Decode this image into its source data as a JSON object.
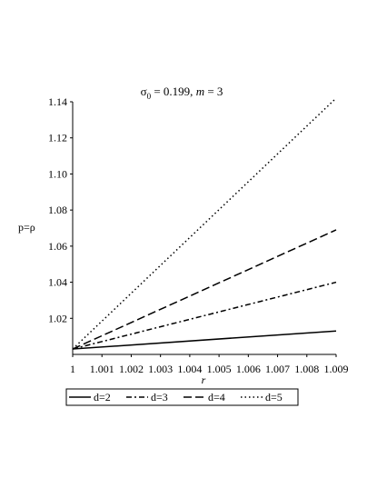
{
  "chart_data": {
    "type": "line",
    "title": {
      "symbol": "σ",
      "subscript": "0",
      "rest": " = 0.199, ",
      "italic": "m",
      "rest2": " = 3"
    },
    "xlabel": "r",
    "ylabel": "p=ρ",
    "xlim": [
      1,
      1.009
    ],
    "ylim": [
      1.0,
      1.14
    ],
    "x_ticks": [
      "1",
      "1.001",
      "1.002",
      "1.003",
      "1.004",
      "1.005",
      "1.006",
      "1.007",
      "1.008",
      "1.009"
    ],
    "y_ticks": [
      "1.02",
      "1.04",
      "1.06",
      "1.08",
      "1.10",
      "1.12",
      "1.14"
    ],
    "y_tick_values": [
      1.02,
      1.04,
      1.06,
      1.08,
      1.1,
      1.12,
      1.14
    ],
    "grid": false,
    "legend_position": "bottom",
    "series": [
      {
        "name": "d=2",
        "style": "solid",
        "x": [
          1,
          1.009
        ],
        "y": [
          1.003,
          1.013
        ]
      },
      {
        "name": "d=3",
        "style": "dashdot",
        "x": [
          1,
          1.009
        ],
        "y": [
          1.003,
          1.04
        ]
      },
      {
        "name": "d=4",
        "style": "dashed",
        "x": [
          1,
          1.009
        ],
        "y": [
          1.003,
          1.069
        ]
      },
      {
        "name": "d=5",
        "style": "dotted",
        "x": [
          1,
          1.009
        ],
        "y": [
          1.003,
          1.142
        ]
      }
    ],
    "line_color": "#000000"
  }
}
